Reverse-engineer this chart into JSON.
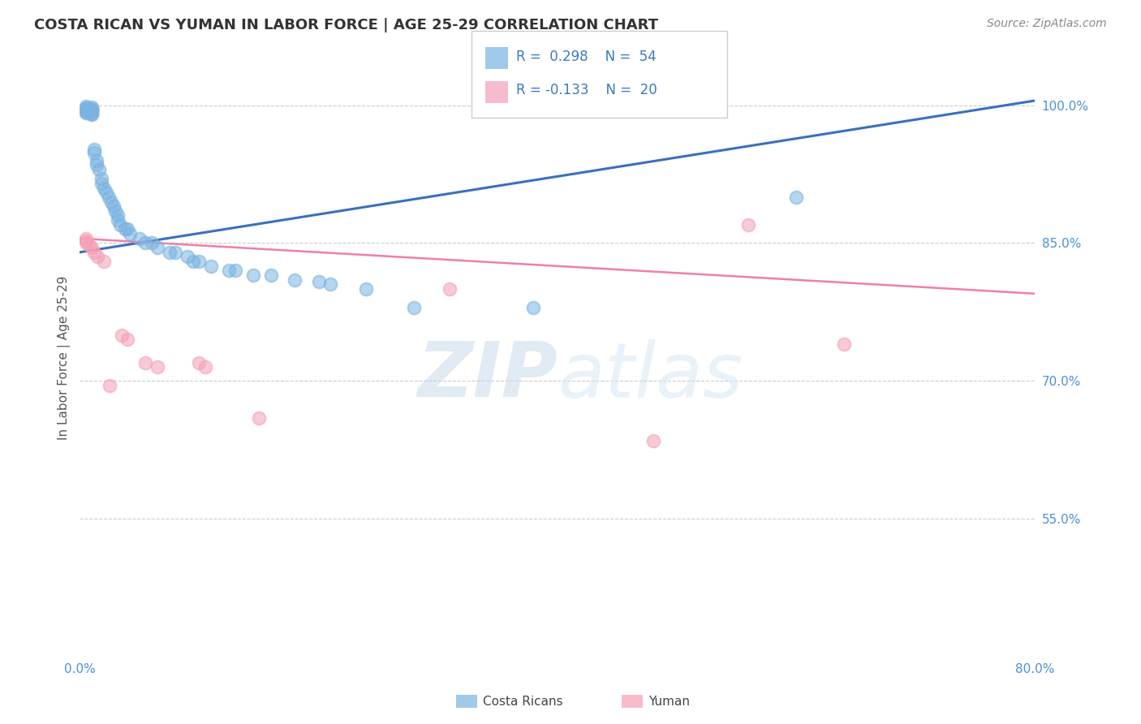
{
  "title": "COSTA RICAN VS YUMAN IN LABOR FORCE | AGE 25-29 CORRELATION CHART",
  "source": "Source: ZipAtlas.com",
  "ylabel": "In Labor Force | Age 25-29",
  "xlim": [
    0.0,
    0.8
  ],
  "ylim": [
    0.4,
    1.05
  ],
  "yticks": [
    0.55,
    0.7,
    0.85,
    1.0
  ],
  "yticklabels": [
    "55.0%",
    "70.0%",
    "85.0%",
    "100.0%"
  ],
  "xtick_left_label": "0.0%",
  "xtick_right_label": "80.0%",
  "grid_color": "#cccccc",
  "background_color": "#ffffff",
  "costa_rican_color": "#7ab3e0",
  "yuman_color": "#f4a0b5",
  "trendline_blue": "#3a6fbf",
  "trendline_pink": "#f080a0",
  "R_blue": 0.298,
  "N_blue": 54,
  "R_pink": -0.133,
  "N_pink": 20,
  "watermark_zip": "ZIP",
  "watermark_atlas": "atlas",
  "blue_line_x0": 0.0,
  "blue_line_y0": 0.84,
  "blue_line_x1": 0.8,
  "blue_line_y1": 1.005,
  "pink_line_x0": 0.0,
  "pink_line_y0": 0.855,
  "pink_line_x1": 0.8,
  "pink_line_y1": 0.795,
  "cr_x": [
    0.005,
    0.005,
    0.005,
    0.005,
    0.005,
    0.005,
    0.005,
    0.01,
    0.01,
    0.01,
    0.01,
    0.01,
    0.01,
    0.01,
    0.012,
    0.012,
    0.014,
    0.014,
    0.016,
    0.018,
    0.018,
    0.02,
    0.022,
    0.024,
    0.026,
    0.028,
    0.03,
    0.032,
    0.032,
    0.034,
    0.038,
    0.04,
    0.042,
    0.05,
    0.055,
    0.06,
    0.065,
    0.075,
    0.08,
    0.09,
    0.095,
    0.1,
    0.11,
    0.125,
    0.13,
    0.145,
    0.16,
    0.18,
    0.2,
    0.21,
    0.24,
    0.28,
    0.38,
    0.6
  ],
  "cr_y": [
    0.999,
    0.997,
    0.996,
    0.995,
    0.994,
    0.993,
    0.992,
    0.998,
    0.996,
    0.995,
    0.994,
    0.993,
    0.991,
    0.99,
    0.952,
    0.948,
    0.94,
    0.935,
    0.93,
    0.92,
    0.915,
    0.91,
    0.905,
    0.9,
    0.895,
    0.89,
    0.885,
    0.88,
    0.875,
    0.87,
    0.865,
    0.865,
    0.86,
    0.855,
    0.85,
    0.85,
    0.845,
    0.84,
    0.84,
    0.835,
    0.83,
    0.83,
    0.825,
    0.82,
    0.82,
    0.815,
    0.815,
    0.81,
    0.808,
    0.805,
    0.8,
    0.78,
    0.78,
    0.9
  ],
  "yu_x": [
    0.005,
    0.005,
    0.005,
    0.008,
    0.01,
    0.012,
    0.015,
    0.02,
    0.025,
    0.035,
    0.04,
    0.055,
    0.065,
    0.1,
    0.105,
    0.15,
    0.31,
    0.48,
    0.56,
    0.64
  ],
  "yu_y": [
    0.855,
    0.852,
    0.85,
    0.848,
    0.845,
    0.84,
    0.835,
    0.83,
    0.695,
    0.75,
    0.745,
    0.72,
    0.715,
    0.72,
    0.715,
    0.66,
    0.8,
    0.635,
    0.87,
    0.74
  ]
}
